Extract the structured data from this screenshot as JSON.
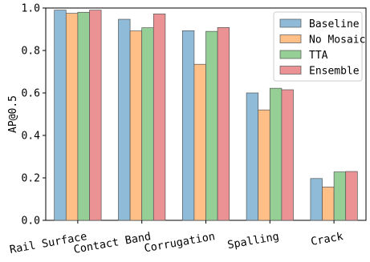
{
  "chart_data": {
    "type": "bar",
    "title": "",
    "xlabel": "",
    "ylabel": "AP@0.5",
    "ylim": [
      0.0,
      1.0
    ],
    "yticks": [
      "0.0",
      "0.2",
      "0.4",
      "0.6",
      "0.8",
      "1.0"
    ],
    "categories": [
      "Rail Surface",
      "Contact Band",
      "Corrugation",
      "Spalling",
      "Crack"
    ],
    "series": [
      {
        "name": "Baseline",
        "color": "#8fbbd9",
        "values": [
          0.99,
          0.947,
          0.893,
          0.6,
          0.197
        ]
      },
      {
        "name": "No Mosaic",
        "color": "#ffbf86",
        "values": [
          0.975,
          0.892,
          0.735,
          0.52,
          0.157
        ]
      },
      {
        "name": "TTA",
        "color": "#95cf95",
        "values": [
          0.98,
          0.907,
          0.89,
          0.622,
          0.228
        ]
      },
      {
        "name": "Ensemble",
        "color": "#eb9394",
        "values": [
          0.99,
          0.972,
          0.908,
          0.615,
          0.23
        ]
      }
    ],
    "legend_position": "top-right",
    "grid": false
  }
}
